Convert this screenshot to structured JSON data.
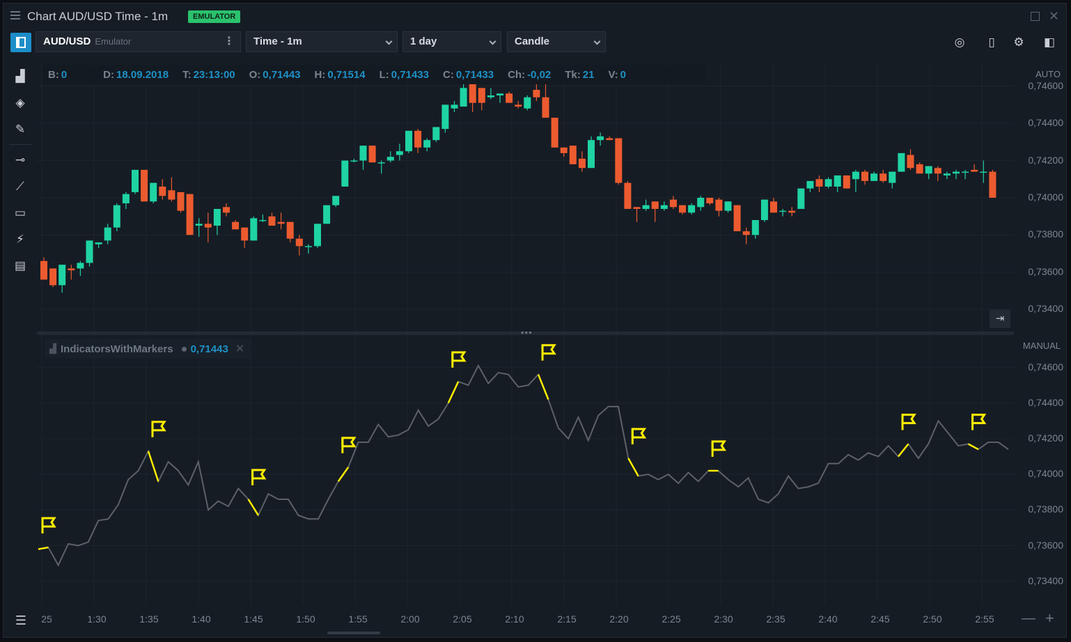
{
  "window": {
    "title": "Chart AUD/USD Time - 1m",
    "badge": "EMULATOR"
  },
  "toolbar": {
    "symbol": "AUD/USD",
    "connection": "Emulator",
    "aggregation": "Time - 1m",
    "period": "1 day",
    "chart_style": "Candle"
  },
  "info_bar": {
    "b_label": "B:",
    "b_value": "0",
    "d_label": "D:",
    "d_value": "18.09.2018",
    "t_label": "T:",
    "t_value": "23:13:00",
    "o_label": "O:",
    "o_value": "0,71443",
    "h_label": "H:",
    "h_value": "0,71514",
    "l_label": "L:",
    "l_value": "0,71433",
    "c_label": "C:",
    "c_value": "0,71433",
    "ch_label": "Ch:",
    "ch_value": "-0,02",
    "tk_label": "Tk:",
    "tk_value": "21",
    "v_label": "V:",
    "v_value": "0"
  },
  "main_axis": {
    "mode": "AUTO",
    "labels": [
      "0,74600",
      "0,74400",
      "0,74200",
      "0,74000",
      "0,73800",
      "0,73600",
      "0,73400"
    ]
  },
  "indicator": {
    "name": "IndicatorsWithMarkers",
    "value": "0,71443"
  },
  "ind_axis": {
    "mode": "MANUAL",
    "labels": [
      "0,74600",
      "0,74400",
      "0,74200",
      "0,74000",
      "0,73800",
      "0,73600",
      "0,73400"
    ]
  },
  "time_axis": {
    "labels": [
      "25",
      "1:30",
      "1:35",
      "1:40",
      "1:45",
      "1:50",
      "1:55",
      "2:00",
      "2:05",
      "2:10",
      "2:15",
      "2:20",
      "2:25",
      "2:30",
      "2:35",
      "2:40",
      "2:45",
      "2:50",
      "2:55"
    ]
  },
  "colors": {
    "up": "#1fd3a3",
    "down": "#ec5b2f",
    "line": "#5d6168",
    "marker": "#ffee00",
    "accent": "#1e91c6"
  },
  "chart_data": {
    "type": "candlestick",
    "y_range": [
      0.7336,
      0.7461
    ],
    "y_ticks": [
      0.746,
      0.744,
      0.742,
      0.74,
      0.738,
      0.736,
      0.734
    ],
    "candles_ohlc": [
      [
        0.7366,
        0.7368,
        0.7356,
        0.7356
      ],
      [
        0.7362,
        0.7362,
        0.7352,
        0.7353
      ],
      [
        0.7353,
        0.7364,
        0.7349,
        0.7364
      ],
      [
        0.7362,
        0.7364,
        0.7356,
        0.7361
      ],
      [
        0.7362,
        0.7366,
        0.7358,
        0.7365
      ],
      [
        0.7365,
        0.7377,
        0.7363,
        0.7377
      ],
      [
        0.7375,
        0.7376,
        0.7373,
        0.7376
      ],
      [
        0.7377,
        0.7386,
        0.7375,
        0.7384
      ],
      [
        0.7384,
        0.7397,
        0.7382,
        0.7396
      ],
      [
        0.7397,
        0.7403,
        0.7394,
        0.7402
      ],
      [
        0.7403,
        0.7415,
        0.7402,
        0.7415
      ],
      [
        0.7415,
        0.7415,
        0.7398,
        0.7398
      ],
      [
        0.7398,
        0.7408,
        0.7397,
        0.7408
      ],
      [
        0.7406,
        0.741,
        0.7399,
        0.7401
      ],
      [
        0.7404,
        0.7411,
        0.7398,
        0.7399
      ],
      [
        0.7403,
        0.7403,
        0.7392,
        0.7393
      ],
      [
        0.7402,
        0.7402,
        0.738,
        0.738
      ],
      [
        0.7385,
        0.7389,
        0.7379,
        0.7386
      ],
      [
        0.7386,
        0.7392,
        0.7376,
        0.7384
      ],
      [
        0.7385,
        0.7394,
        0.738,
        0.7394
      ],
      [
        0.7395,
        0.7397,
        0.739,
        0.7392
      ],
      [
        0.7387,
        0.7388,
        0.7383,
        0.7383
      ],
      [
        0.7384,
        0.7384,
        0.7373,
        0.7377
      ],
      [
        0.7377,
        0.739,
        0.7377,
        0.7389
      ],
      [
        0.7388,
        0.7391,
        0.7387,
        0.7388
      ],
      [
        0.739,
        0.7392,
        0.7385,
        0.7385
      ],
      [
        0.7387,
        0.7392,
        0.7383,
        0.7386
      ],
      [
        0.7387,
        0.7387,
        0.7376,
        0.7378
      ],
      [
        0.7378,
        0.738,
        0.7369,
        0.7374
      ],
      [
        0.7374,
        0.7375,
        0.737,
        0.7374
      ],
      [
        0.7374,
        0.7384,
        0.7373,
        0.7386
      ],
      [
        0.7386,
        0.7396,
        0.7386,
        0.7396
      ],
      [
        0.7396,
        0.7401,
        0.7395,
        0.7401
      ],
      [
        0.7406,
        0.742,
        0.7406,
        0.742
      ],
      [
        0.742,
        0.7421,
        0.7419,
        0.742
      ],
      [
        0.742,
        0.7428,
        0.7415,
        0.7428
      ],
      [
        0.7428,
        0.7428,
        0.7419,
        0.7419
      ],
      [
        0.7419,
        0.742,
        0.7413,
        0.7419
      ],
      [
        0.742,
        0.7425,
        0.7419,
        0.7422
      ],
      [
        0.7423,
        0.7429,
        0.742,
        0.7425
      ],
      [
        0.7425,
        0.7436,
        0.7424,
        0.7436
      ],
      [
        0.7436,
        0.7437,
        0.7424,
        0.7427
      ],
      [
        0.7427,
        0.7432,
        0.7425,
        0.7431
      ],
      [
        0.7431,
        0.7438,
        0.743,
        0.7438
      ],
      [
        0.7437,
        0.745,
        0.7435,
        0.745
      ],
      [
        0.7448,
        0.7452,
        0.7446,
        0.745
      ],
      [
        0.7449,
        0.7461,
        0.7449,
        0.7459
      ],
      [
        0.7461,
        0.7463,
        0.7446,
        0.7451
      ],
      [
        0.7459,
        0.7459,
        0.7447,
        0.7451
      ],
      [
        0.7454,
        0.7459,
        0.7453,
        0.7455
      ],
      [
        0.7455,
        0.7456,
        0.7451,
        0.7456
      ],
      [
        0.7456,
        0.7457,
        0.7451,
        0.7451
      ],
      [
        0.745,
        0.7452,
        0.7448,
        0.7449
      ],
      [
        0.7448,
        0.7455,
        0.7447,
        0.7454
      ],
      [
        0.7458,
        0.7463,
        0.7452,
        0.7454
      ],
      [
        0.7454,
        0.7461,
        0.7443,
        0.7443
      ],
      [
        0.7443,
        0.7443,
        0.7427,
        0.7427
      ],
      [
        0.7427,
        0.7427,
        0.7422,
        0.7424
      ],
      [
        0.7428,
        0.7428,
        0.7418,
        0.7418
      ],
      [
        0.7421,
        0.7425,
        0.7414,
        0.7416
      ],
      [
        0.7416,
        0.7433,
        0.7416,
        0.7431
      ],
      [
        0.7431,
        0.7435,
        0.7428,
        0.7433
      ],
      [
        0.7432,
        0.7433,
        0.7431,
        0.7431
      ],
      [
        0.7432,
        0.7432,
        0.7407,
        0.7408
      ],
      [
        0.7408,
        0.7409,
        0.7394,
        0.7394
      ],
      [
        0.7395,
        0.7395,
        0.7387,
        0.7394
      ],
      [
        0.7394,
        0.7399,
        0.7393,
        0.7396
      ],
      [
        0.7398,
        0.7398,
        0.7387,
        0.7394
      ],
      [
        0.7394,
        0.7398,
        0.7393,
        0.7396
      ],
      [
        0.7399,
        0.7401,
        0.7394,
        0.7395
      ],
      [
        0.7396,
        0.7396,
        0.7391,
        0.7392
      ],
      [
        0.7392,
        0.7397,
        0.7391,
        0.7396
      ],
      [
        0.7395,
        0.7401,
        0.7393,
        0.74
      ],
      [
        0.74,
        0.74,
        0.7396,
        0.7397
      ],
      [
        0.7399,
        0.74,
        0.739,
        0.7393
      ],
      [
        0.7393,
        0.7398,
        0.7392,
        0.7398
      ],
      [
        0.7396,
        0.7396,
        0.7382,
        0.7382
      ],
      [
        0.7382,
        0.7384,
        0.7375,
        0.738
      ],
      [
        0.738,
        0.7388,
        0.7378,
        0.7388
      ],
      [
        0.7388,
        0.7399,
        0.7387,
        0.7399
      ],
      [
        0.7398,
        0.74,
        0.7392,
        0.7392
      ],
      [
        0.7393,
        0.7394,
        0.739,
        0.7393
      ],
      [
        0.7393,
        0.7395,
        0.739,
        0.7392
      ],
      [
        0.7394,
        0.7405,
        0.7394,
        0.7405
      ],
      [
        0.7405,
        0.7409,
        0.7403,
        0.7409
      ],
      [
        0.741,
        0.7412,
        0.7403,
        0.7406
      ],
      [
        0.7406,
        0.7411,
        0.7405,
        0.741
      ],
      [
        0.7406,
        0.7412,
        0.7403,
        0.7412
      ],
      [
        0.7412,
        0.7412,
        0.7405,
        0.7405
      ],
      [
        0.741,
        0.7415,
        0.7403,
        0.7414
      ],
      [
        0.7414,
        0.7415,
        0.7407,
        0.7409
      ],
      [
        0.7409,
        0.7414,
        0.7409,
        0.7413
      ],
      [
        0.7413,
        0.7415,
        0.7408,
        0.7409
      ],
      [
        0.7408,
        0.7414,
        0.7405,
        0.7414
      ],
      [
        0.7414,
        0.7423,
        0.7414,
        0.7424
      ],
      [
        0.7423,
        0.7426,
        0.7415,
        0.7416
      ],
      [
        0.7418,
        0.7419,
        0.7413,
        0.7413
      ],
      [
        0.7413,
        0.7417,
        0.741,
        0.7417
      ],
      [
        0.7416,
        0.7417,
        0.7409,
        0.7413
      ],
      [
        0.7412,
        0.7414,
        0.741,
        0.7413
      ],
      [
        0.7413,
        0.7415,
        0.741,
        0.7414
      ],
      [
        0.7414,
        0.7415,
        0.741,
        0.7414
      ],
      [
        0.7415,
        0.7418,
        0.7414,
        0.7414
      ],
      [
        0.7414,
        0.742,
        0.7408,
        0.7414
      ],
      [
        0.7414,
        0.7415,
        0.7403,
        0.74
      ]
    ],
    "indicator_series": [
      0.7358,
      0.7359,
      0.7349,
      0.7361,
      0.736,
      0.7362,
      0.7374,
      0.7375,
      0.7383,
      0.7397,
      0.7402,
      0.7413,
      0.7396,
      0.7407,
      0.7402,
      0.7394,
      0.7407,
      0.738,
      0.7385,
      0.7382,
      0.7392,
      0.7386,
      0.7377,
      0.7389,
      0.7386,
      0.7386,
      0.7377,
      0.7375,
      0.7375,
      0.7386,
      0.7396,
      0.7404,
      0.7418,
      0.7418,
      0.7428,
      0.7421,
      0.7422,
      0.7425,
      0.7436,
      0.7427,
      0.7431,
      0.744,
      0.7452,
      0.745,
      0.7461,
      0.7451,
      0.7457,
      0.7456,
      0.7449,
      0.745,
      0.7456,
      0.7442,
      0.7426,
      0.742,
      0.7432,
      0.7419,
      0.7433,
      0.7438,
      0.7438,
      0.7409,
      0.7399,
      0.74,
      0.7397,
      0.74,
      0.7395,
      0.7401,
      0.7396,
      0.7402,
      0.7402,
      0.7397,
      0.7393,
      0.7398,
      0.7386,
      0.7384,
      0.7389,
      0.7399,
      0.7392,
      0.7393,
      0.7395,
      0.7406,
      0.7406,
      0.7411,
      0.7408,
      0.7412,
      0.741,
      0.7416,
      0.741,
      0.7417,
      0.7409,
      0.7417,
      0.743,
      0.7423,
      0.7416,
      0.7417,
      0.7414,
      0.7418,
      0.7418,
      0.7414
    ],
    "markers_at_index": [
      0,
      11,
      21,
      30,
      41,
      50,
      59,
      67,
      86,
      93
    ]
  }
}
